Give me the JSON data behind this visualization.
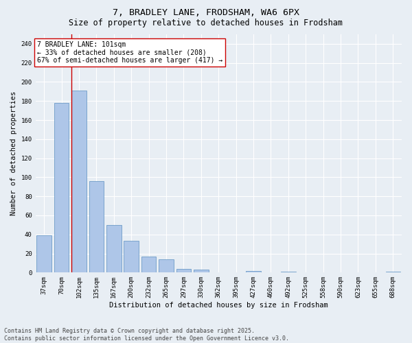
{
  "title_line1": "7, BRADLEY LANE, FRODSHAM, WA6 6PX",
  "title_line2": "Size of property relative to detached houses in Frodsham",
  "xlabel": "Distribution of detached houses by size in Frodsham",
  "ylabel": "Number of detached properties",
  "categories": [
    "37sqm",
    "70sqm",
    "102sqm",
    "135sqm",
    "167sqm",
    "200sqm",
    "232sqm",
    "265sqm",
    "297sqm",
    "330sqm",
    "362sqm",
    "395sqm",
    "427sqm",
    "460sqm",
    "492sqm",
    "525sqm",
    "558sqm",
    "590sqm",
    "623sqm",
    "655sqm",
    "688sqm"
  ],
  "values": [
    39,
    178,
    191,
    96,
    50,
    33,
    17,
    14,
    4,
    3,
    0,
    0,
    2,
    0,
    1,
    0,
    0,
    0,
    0,
    0,
    1
  ],
  "bar_color": "#aec6e8",
  "bar_edge_color": "#5a8fc0",
  "highlight_line_color": "#cc0000",
  "annotation_text": "7 BRADLEY LANE: 101sqm\n← 33% of detached houses are smaller (208)\n67% of semi-detached houses are larger (417) →",
  "annotation_box_color": "#ffffff",
  "annotation_box_edge_color": "#cc0000",
  "ylim": [
    0,
    250
  ],
  "yticks": [
    0,
    20,
    40,
    60,
    80,
    100,
    120,
    140,
    160,
    180,
    200,
    220,
    240
  ],
  "background_color": "#e8eef4",
  "plot_background_color": "#e8eef4",
  "footer_line1": "Contains HM Land Registry data © Crown copyright and database right 2025.",
  "footer_line2": "Contains public sector information licensed under the Open Government Licence v3.0.",
  "title_fontsize": 9.5,
  "subtitle_fontsize": 8.5,
  "axis_label_fontsize": 7.5,
  "tick_fontsize": 6.5,
  "annotation_fontsize": 7,
  "footer_fontsize": 6
}
